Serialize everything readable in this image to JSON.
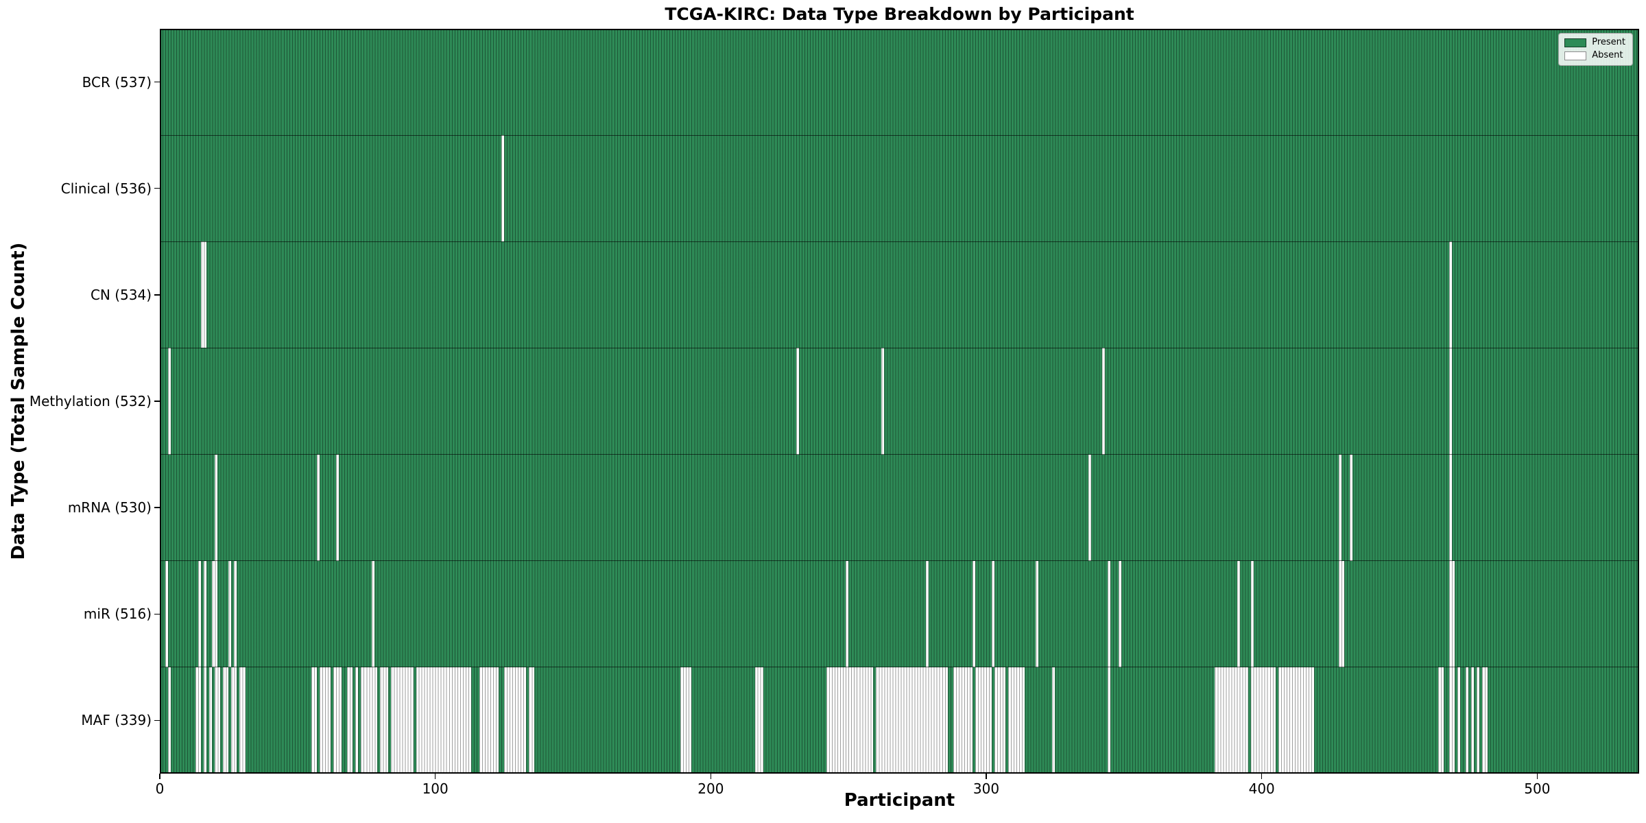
{
  "title": "TCGA-KIRC: Data Type Breakdown by Participant",
  "legend": {
    "items": [
      {
        "label": "Present",
        "color": "#2e8b57"
      },
      {
        "label": "Absent",
        "color": "#ffffff"
      }
    ]
  },
  "colors": {
    "present": "#2e8b57",
    "absent": "#ffffff",
    "bar_edge": "rgba(0,0,0,0.38)",
    "row_separator": "rgba(0,0,0,0.6)",
    "plot_border": "#000000",
    "legend_bg": "rgba(255,255,255,0.85)",
    "legend_border": "#a3a3a3"
  },
  "chart_data": {
    "type": "heatmap",
    "title": "TCGA-KIRC: Data Type Breakdown by Participant",
    "xlabel": "Participant",
    "ylabel": "Data Type (Total Sample Count)",
    "x_ticks": [
      0,
      100,
      200,
      300,
      400,
      500
    ],
    "x_range": [
      0,
      537
    ],
    "n_participants": 537,
    "grid": false,
    "legend_position": "upper right",
    "legend_entries": [
      "Present",
      "Absent"
    ],
    "rows": [
      {
        "label": "BCR (537)",
        "data_type": "BCR",
        "present_count": 537,
        "absent_ranges": []
      },
      {
        "label": "Clinical (536)",
        "data_type": "Clinical",
        "present_count": 536,
        "absent_ranges": [
          [
            124,
            124
          ]
        ]
      },
      {
        "label": "CN (534)",
        "data_type": "CN",
        "present_count": 534,
        "absent_ranges": [
          [
            15,
            16
          ],
          [
            468,
            468
          ]
        ]
      },
      {
        "label": "Methylation (532)",
        "data_type": "Methylation",
        "present_count": 532,
        "absent_ranges": [
          [
            3,
            3
          ],
          [
            231,
            231
          ],
          [
            262,
            262
          ],
          [
            342,
            342
          ],
          [
            468,
            468
          ]
        ]
      },
      {
        "label": "mRNA (530)",
        "data_type": "mRNA",
        "present_count": 530,
        "absent_ranges": [
          [
            20,
            20
          ],
          [
            57,
            57
          ],
          [
            64,
            64
          ],
          [
            337,
            337
          ],
          [
            428,
            428
          ],
          [
            432,
            432
          ],
          [
            468,
            468
          ]
        ]
      },
      {
        "label": "miR (516)",
        "data_type": "miR",
        "present_count": 516,
        "absent_ranges": [
          [
            2,
            2
          ],
          [
            14,
            14
          ],
          [
            16,
            16
          ],
          [
            19,
            20
          ],
          [
            25,
            25
          ],
          [
            27,
            27
          ],
          [
            77,
            77
          ],
          [
            249,
            249
          ],
          [
            278,
            278
          ],
          [
            295,
            295
          ],
          [
            302,
            302
          ],
          [
            318,
            318
          ],
          [
            344,
            344
          ],
          [
            348,
            348
          ],
          [
            391,
            391
          ],
          [
            396,
            396
          ],
          [
            428,
            429
          ],
          [
            468,
            469
          ]
        ]
      },
      {
        "label": "MAF (339)",
        "data_type": "MAF",
        "present_count": 339,
        "absent_ranges": [
          [
            3,
            3
          ],
          [
            13,
            14
          ],
          [
            16,
            16
          ],
          [
            18,
            18
          ],
          [
            20,
            21
          ],
          [
            23,
            24
          ],
          [
            26,
            27
          ],
          [
            29,
            30
          ],
          [
            55,
            56
          ],
          [
            58,
            61
          ],
          [
            63,
            65
          ],
          [
            68,
            69
          ],
          [
            71,
            71
          ],
          [
            73,
            78
          ],
          [
            80,
            82
          ],
          [
            84,
            91
          ],
          [
            93,
            112
          ],
          [
            116,
            122
          ],
          [
            125,
            132
          ],
          [
            134,
            135
          ],
          [
            189,
            192
          ],
          [
            216,
            218
          ],
          [
            242,
            258
          ],
          [
            260,
            285
          ],
          [
            288,
            294
          ],
          [
            296,
            301
          ],
          [
            303,
            306
          ],
          [
            308,
            313
          ],
          [
            324,
            324
          ],
          [
            344,
            344
          ],
          [
            383,
            394
          ],
          [
            396,
            404
          ],
          [
            406,
            418
          ],
          [
            464,
            465
          ],
          [
            468,
            469
          ],
          [
            471,
            471
          ],
          [
            474,
            474
          ],
          [
            476,
            476
          ],
          [
            478,
            478
          ],
          [
            480,
            481
          ]
        ]
      }
    ]
  }
}
